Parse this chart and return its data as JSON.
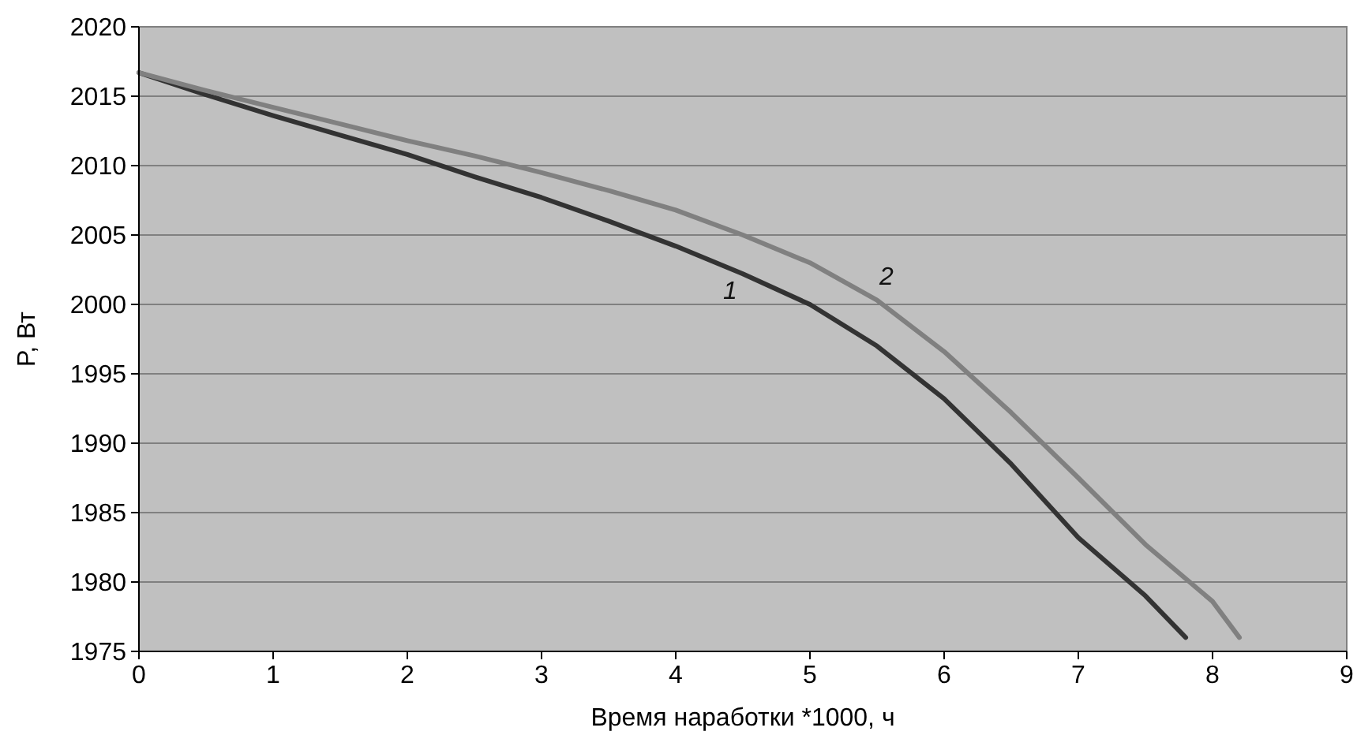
{
  "chart_data": {
    "type": "line",
    "xlabel": "Время наработки *1000, ч",
    "ylabel": "P, Вт",
    "xlim": [
      0,
      9
    ],
    "xticks": [
      0,
      1,
      2,
      3,
      4,
      5,
      6,
      7,
      8,
      9
    ],
    "ylim": [
      1975,
      2020
    ],
    "yticks": [
      1975,
      1980,
      1985,
      1990,
      1995,
      2000,
      2005,
      2010,
      2015,
      2020
    ],
    "grid": "y",
    "marker": "none",
    "line_style": "solid",
    "series": [
      {
        "name": "1",
        "color": "#333333",
        "x": [
          0,
          0.5,
          1,
          1.5,
          2,
          2.5,
          3,
          3.5,
          4,
          4.5,
          5,
          5.5,
          6,
          6.5,
          7,
          7.5,
          7.8
        ],
        "values": [
          2016.7,
          2015.1,
          2013.6,
          2012.2,
          2010.8,
          2009.2,
          2007.7,
          2006,
          2004.2,
          2002.2,
          2000,
          1997,
          1993.2,
          1988.5,
          1983.2,
          1979,
          1976
        ]
      },
      {
        "name": "2",
        "color": "#808080",
        "x": [
          0,
          0.5,
          1,
          1.5,
          2,
          2.5,
          3,
          3.5,
          4,
          4.5,
          5,
          5.5,
          6,
          6.5,
          7,
          7.5,
          8,
          8.2
        ],
        "values": [
          2016.7,
          2015.4,
          2014.2,
          2013,
          2011.8,
          2010.7,
          2009.5,
          2008.2,
          2006.8,
          2005,
          2003,
          2000.3,
          1996.6,
          1992.2,
          1987.5,
          1982.7,
          1978.6,
          1976
        ]
      }
    ]
  }
}
